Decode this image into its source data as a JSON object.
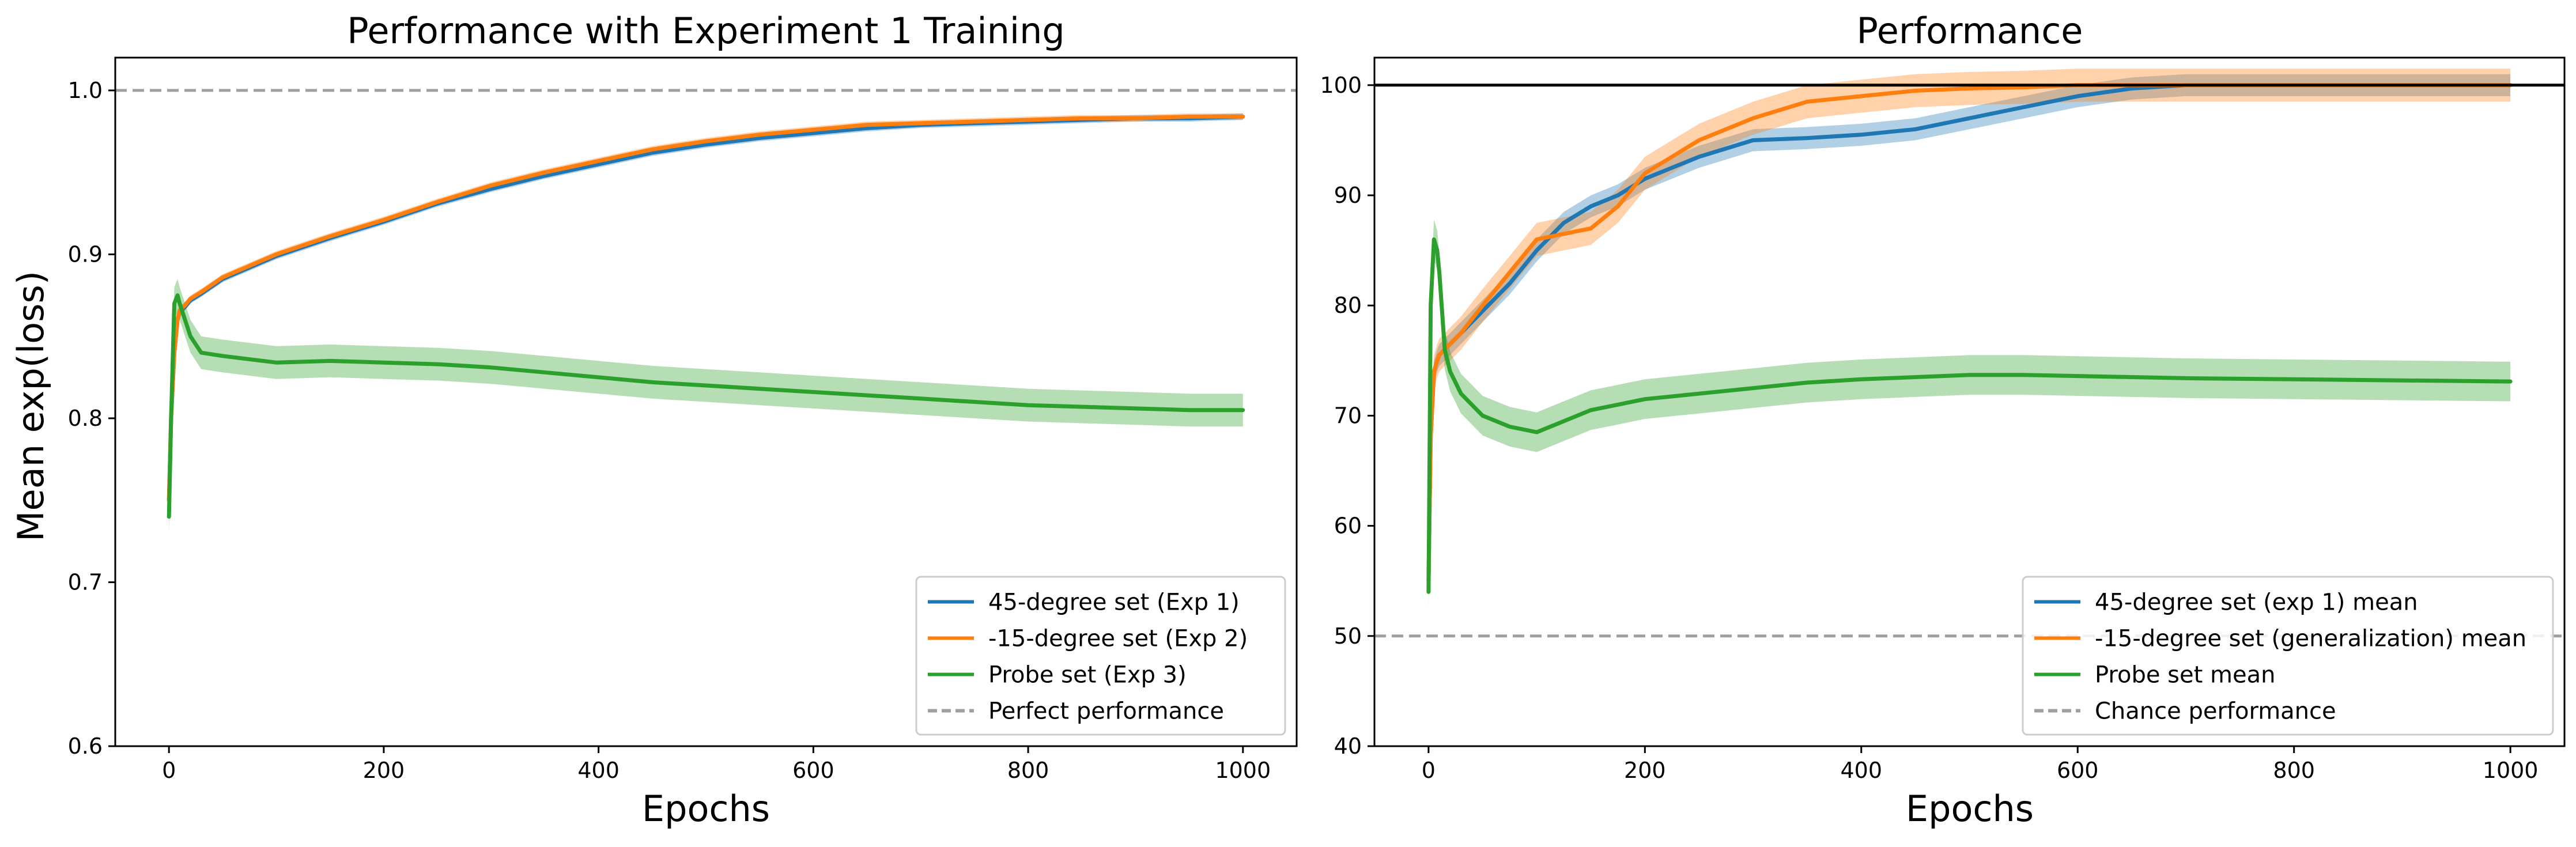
{
  "chart_data": [
    {
      "type": "line",
      "title": "Performance with Experiment 1 Training",
      "xlabel": "Epochs",
      "ylabel": "Mean exp(loss)",
      "xlim": [
        -50,
        1050
      ],
      "ylim": [
        0.6,
        1.02
      ],
      "xticks": [
        0,
        200,
        400,
        600,
        800,
        1000
      ],
      "yticks": [
        0.6,
        0.7,
        0.8,
        0.9,
        1.0
      ],
      "xtick_labels": [
        "0",
        "200",
        "400",
        "600",
        "800",
        "1000"
      ],
      "ytick_labels": [
        "0.6",
        "0.7",
        "0.8",
        "0.9",
        "1.0"
      ],
      "grid": false,
      "legend_position": "lower-right",
      "reference_line": {
        "name": "Perfect performance",
        "y": 1.0,
        "style": "dashed",
        "color": "#a0a0a0"
      },
      "series": [
        {
          "name": "45-degree set (Exp 1)",
          "color": "#1f77b4",
          "x": [
            0,
            2,
            5,
            8,
            10,
            15,
            20,
            30,
            50,
            100,
            150,
            200,
            250,
            300,
            350,
            400,
            450,
            500,
            550,
            600,
            650,
            700,
            750,
            800,
            850,
            900,
            950,
            1000
          ],
          "y": [
            0.75,
            0.8,
            0.84,
            0.86,
            0.865,
            0.868,
            0.872,
            0.876,
            0.885,
            0.899,
            0.91,
            0.92,
            0.931,
            0.94,
            0.948,
            0.955,
            0.962,
            0.967,
            0.971,
            0.974,
            0.977,
            0.979,
            0.98,
            0.981,
            0.982,
            0.983,
            0.983,
            0.984
          ],
          "band": 0.002
        },
        {
          "name": "-15-degree set (Exp 2)",
          "color": "#ff7f0e",
          "x": [
            0,
            2,
            5,
            8,
            10,
            15,
            20,
            30,
            50,
            100,
            150,
            200,
            250,
            300,
            350,
            400,
            450,
            500,
            550,
            600,
            650,
            700,
            750,
            800,
            850,
            900,
            950,
            1000
          ],
          "y": [
            0.75,
            0.8,
            0.84,
            0.86,
            0.866,
            0.869,
            0.873,
            0.877,
            0.886,
            0.9,
            0.911,
            0.921,
            0.932,
            0.942,
            0.95,
            0.957,
            0.964,
            0.969,
            0.973,
            0.976,
            0.979,
            0.98,
            0.981,
            0.982,
            0.983,
            0.983,
            0.984,
            0.984
          ],
          "band": 0.002
        },
        {
          "name": "Probe set (Exp 3)",
          "color": "#2ca02c",
          "x": [
            0,
            2,
            5,
            8,
            10,
            15,
            20,
            30,
            50,
            100,
            150,
            200,
            250,
            300,
            350,
            400,
            450,
            500,
            550,
            600,
            650,
            700,
            750,
            800,
            850,
            900,
            950,
            1000
          ],
          "y": [
            0.74,
            0.8,
            0.87,
            0.875,
            0.87,
            0.86,
            0.85,
            0.84,
            0.838,
            0.834,
            0.835,
            0.834,
            0.833,
            0.831,
            0.828,
            0.825,
            0.822,
            0.82,
            0.818,
            0.816,
            0.814,
            0.812,
            0.81,
            0.808,
            0.807,
            0.806,
            0.805,
            0.805
          ],
          "band": 0.01
        }
      ]
    },
    {
      "type": "line",
      "title": "Performance",
      "xlabel": "Epochs",
      "ylabel": "",
      "xlim": [
        -50,
        1050
      ],
      "ylim": [
        40,
        102.5
      ],
      "xticks": [
        0,
        200,
        400,
        600,
        800,
        1000
      ],
      "yticks": [
        40,
        50,
        60,
        70,
        80,
        90,
        100
      ],
      "xtick_labels": [
        "0",
        "200",
        "400",
        "600",
        "800",
        "1000"
      ],
      "ytick_labels": [
        "40",
        "50",
        "60",
        "70",
        "80",
        "90",
        "100"
      ],
      "grid": false,
      "legend_position": "lower-right",
      "reference_lines": [
        {
          "name": "Chance performance",
          "y": 50,
          "style": "dashed",
          "color": "#a0a0a0"
        },
        {
          "name": "",
          "y": 100,
          "style": "solid",
          "color": "#000000"
        }
      ],
      "series": [
        {
          "name": "45-degree set (exp 1) mean",
          "color": "#1f77b4",
          "x": [
            0,
            2,
            5,
            8,
            10,
            15,
            20,
            30,
            50,
            75,
            100,
            125,
            150,
            175,
            200,
            250,
            300,
            350,
            400,
            450,
            500,
            550,
            600,
            650,
            700,
            800,
            900,
            1000
          ],
          "y": [
            55,
            68,
            74,
            75,
            75.5,
            76,
            76.5,
            77.5,
            79.5,
            82,
            85,
            87.5,
            89,
            90,
            91.5,
            93.5,
            95,
            95.2,
            95.5,
            96,
            97,
            98,
            99,
            99.7,
            100,
            100,
            100,
            100
          ],
          "band": 1.0
        },
        {
          "name": "-15-degree set (generalization) mean",
          "color": "#ff7f0e",
          "x": [
            0,
            2,
            5,
            8,
            10,
            15,
            20,
            30,
            50,
            75,
            100,
            125,
            150,
            175,
            200,
            250,
            300,
            350,
            400,
            450,
            500,
            550,
            600,
            650,
            700,
            800,
            900,
            1000
          ],
          "y": [
            55,
            68,
            74,
            75,
            75.5,
            76,
            76.5,
            77.5,
            80,
            83,
            86,
            86.5,
            87,
            89,
            92,
            95,
            97,
            98.5,
            99,
            99.5,
            99.7,
            99.8,
            100,
            100,
            100,
            100,
            100,
            100
          ],
          "band": 1.5
        },
        {
          "name": "Probe set mean",
          "color": "#2ca02c",
          "x": [
            0,
            2,
            5,
            8,
            10,
            15,
            20,
            30,
            50,
            75,
            100,
            125,
            150,
            175,
            200,
            250,
            300,
            350,
            400,
            450,
            500,
            550,
            600,
            650,
            700,
            800,
            900,
            1000
          ],
          "y": [
            54,
            80,
            86,
            85,
            83,
            76,
            74,
            72,
            70,
            69,
            68.5,
            69.5,
            70.5,
            71,
            71.5,
            72,
            72.5,
            73,
            73.3,
            73.5,
            73.7,
            73.7,
            73.6,
            73.5,
            73.4,
            73.3,
            73.2,
            73.1
          ],
          "band": 1.8
        }
      ]
    }
  ]
}
